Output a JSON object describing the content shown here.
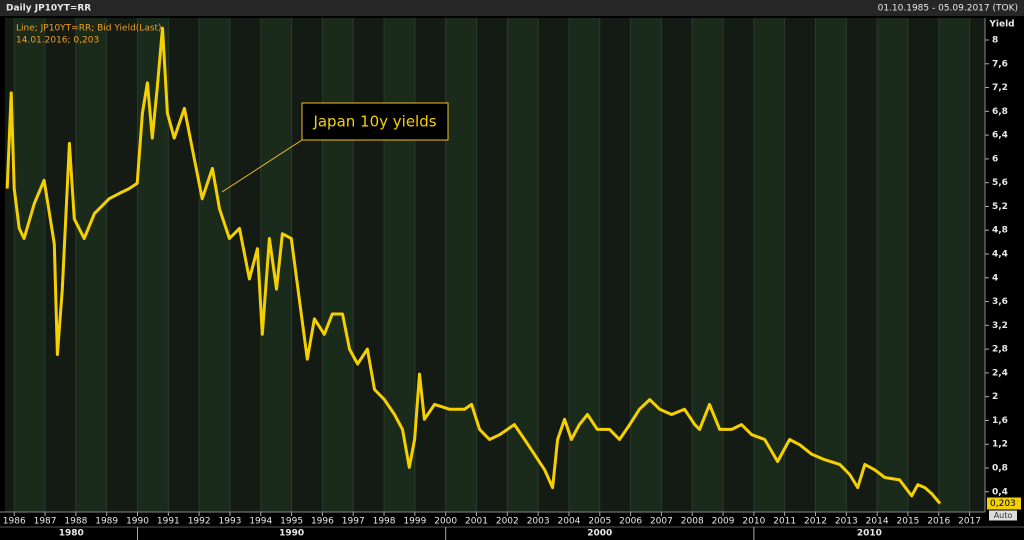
{
  "chart_data": {
    "type": "line",
    "title": "Daily JP10YT=RR",
    "date_range": "01.10.1985 - 05.09.2017 (TOK)",
    "ylabel": "Yield",
    "legend_detail": "14.01.2016; 0,203",
    "annotation": "Japan 10y yields",
    "auto_label": "Auto",
    "last_value": {
      "value": 0.203,
      "label": "0,203"
    },
    "x": [
      1985.77,
      1985.9,
      1986.0,
      1986.16,
      1986.32,
      1986.65,
      1986.97,
      1987.3,
      1987.4,
      1987.56,
      1987.79,
      1987.95,
      1988.27,
      1988.6,
      1989.08,
      1989.41,
      1989.73,
      1989.99,
      1990.16,
      1990.32,
      1990.48,
      1990.64,
      1990.81,
      1990.97,
      1991.19,
      1991.52,
      1991.84,
      1992.1,
      1992.43,
      1992.66,
      1992.98,
      1993.31,
      1993.63,
      1993.89,
      1994.05,
      1994.28,
      1994.51,
      1994.7,
      1994.99,
      1995.25,
      1995.51,
      1995.74,
      1996.06,
      1996.32,
      1996.65,
      1996.88,
      1997.14,
      1997.46,
      1997.69,
      1998.01,
      1998.34,
      1998.6,
      1998.82,
      1998.99,
      1999.15,
      1999.31,
      1999.64,
      2000.12,
      2000.61,
      2000.84,
      2001.1,
      2001.42,
      2001.75,
      2002.23,
      2002.56,
      2002.88,
      2003.21,
      2003.47,
      2003.63,
      2003.86,
      2004.08,
      2004.34,
      2004.6,
      2004.92,
      2005.32,
      2005.64,
      2005.97,
      2006.29,
      2006.62,
      2006.94,
      2007.33,
      2007.75,
      2008.08,
      2008.24,
      2008.56,
      2008.89,
      2009.28,
      2009.6,
      2009.93,
      2010.35,
      2010.77,
      2011.16,
      2011.49,
      2011.88,
      2012.3,
      2012.79,
      2013.11,
      2013.37,
      2013.6,
      2013.92,
      2014.25,
      2014.73,
      2015.12,
      2015.32,
      2015.55,
      2015.77,
      2016.04
    ],
    "series": [
      {
        "name": "Line; JP10YT=RR; Bid Yield(Last)",
        "color": "#f5d000",
        "values": [
          5.5,
          7.11,
          5.5,
          4.83,
          4.66,
          5.25,
          5.64,
          4.57,
          2.71,
          3.81,
          6.26,
          4.99,
          4.66,
          5.08,
          5.33,
          5.42,
          5.5,
          5.59,
          6.77,
          7.28,
          6.35,
          7.19,
          8.2,
          6.77,
          6.35,
          6.85,
          6.01,
          5.33,
          5.84,
          5.16,
          4.66,
          4.83,
          3.98,
          4.49,
          3.05,
          4.66,
          3.81,
          4.74,
          4.66,
          3.64,
          2.63,
          3.31,
          3.05,
          3.39,
          3.39,
          2.8,
          2.55,
          2.8,
          2.12,
          1.95,
          1.7,
          1.45,
          0.81,
          1.28,
          2.38,
          1.62,
          1.87,
          1.79,
          1.79,
          1.87,
          1.45,
          1.28,
          1.36,
          1.53,
          1.28,
          1.03,
          0.77,
          0.47,
          1.28,
          1.62,
          1.28,
          1.53,
          1.7,
          1.45,
          1.45,
          1.28,
          1.53,
          1.79,
          1.95,
          1.79,
          1.7,
          1.79,
          1.53,
          1.45,
          1.87,
          1.45,
          1.45,
          1.53,
          1.36,
          1.28,
          0.91,
          1.28,
          1.19,
          1.03,
          0.94,
          0.86,
          0.69,
          0.47,
          0.86,
          0.77,
          0.64,
          0.6,
          0.33,
          0.52,
          0.47,
          0.37,
          0.203
        ]
      }
    ],
    "xlim": [
      1985.7,
      2017.5
    ],
    "xticks": [
      1986,
      1987,
      1988,
      1989,
      1990,
      1991,
      1992,
      1993,
      1994,
      1995,
      1996,
      1997,
      1998,
      1999,
      2000,
      2001,
      2002,
      2003,
      2004,
      2005,
      2006,
      2007,
      2008,
      2009,
      2010,
      2011,
      2012,
      2013,
      2014,
      2015,
      2016,
      2017
    ],
    "decade_ticks": [
      1980,
      1990,
      2000,
      2010
    ],
    "ylim": [
      0.06,
      8.37
    ],
    "yticks": [
      {
        "value": 0.4,
        "label": "0,4"
      },
      {
        "value": 0.8,
        "label": "0,8"
      },
      {
        "value": 1.2,
        "label": "1,2"
      },
      {
        "value": 1.6,
        "label": "1,6"
      },
      2,
      {
        "value": 2.4,
        "label": "2,4"
      },
      {
        "value": 2.8,
        "label": "2,8"
      },
      {
        "value": 3.2,
        "label": "3,2"
      },
      {
        "value": 3.6,
        "label": "3,6"
      },
      4,
      {
        "value": 4.4,
        "label": "4,4"
      },
      {
        "value": 4.8,
        "label": "4,8"
      },
      {
        "value": 5.2,
        "label": "5,2"
      },
      {
        "value": 5.6,
        "label": "5,6"
      },
      6,
      {
        "value": 6.4,
        "label": "6,4"
      },
      {
        "value": 6.8,
        "label": "6,8"
      },
      {
        "value": 7.2,
        "label": "7,2"
      },
      {
        "value": 7.6,
        "label": "7,6"
      },
      8
    ],
    "grid": false
  }
}
